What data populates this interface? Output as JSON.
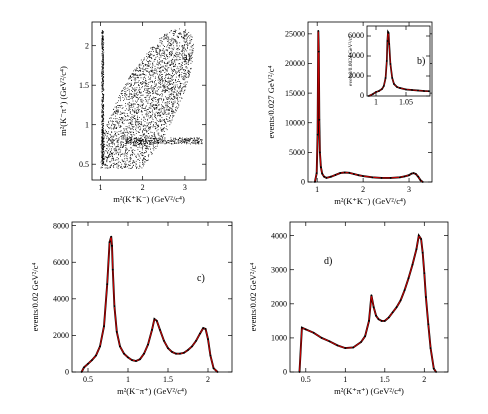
{
  "chart_data": [
    {
      "panel": "a)",
      "type": "scatter",
      "xlabel": "m²(K⁺K⁻) (GeV²/c⁴)",
      "ylabel": "m²(K⁻π⁺) (GeV²/c⁴)",
      "xlim": [
        0.8,
        3.5
      ],
      "ylim": [
        0.3,
        2.3
      ],
      "xticks": [
        1,
        2,
        3
      ],
      "yticks": [
        0.5,
        1,
        1.5,
        2
      ],
      "description_points": "dalitz_density",
      "color": "#000000"
    },
    {
      "panel": "b)",
      "type": "line",
      "xlabel": "m²(K⁺K⁻) (GeV²/c⁴)",
      "ylabel": "events/0.027 GeV²/c⁴",
      "xlim": [
        0.8,
        3.5
      ],
      "ylim": [
        0,
        27000
      ],
      "xticks": [
        1,
        2,
        3
      ],
      "yticks": [
        0,
        5000,
        10000,
        15000,
        20000,
        25000
      ],
      "x": [
        0.95,
        0.99,
        1.01,
        1.025,
        1.035,
        1.045,
        1.06,
        1.08,
        1.11,
        1.15,
        1.2,
        1.3,
        1.4,
        1.5,
        1.6,
        1.7,
        1.8,
        1.9,
        2.0,
        2.2,
        2.4,
        2.6,
        2.8,
        2.9,
        3.0,
        3.05,
        3.1,
        3.15,
        3.2,
        3.25,
        3.3
      ],
      "y": [
        0,
        1500,
        8000,
        25500,
        22000,
        10500,
        5000,
        2500,
        1400,
        900,
        700,
        900,
        1200,
        1500,
        1600,
        1550,
        1350,
        1150,
        1000,
        800,
        700,
        700,
        800,
        950,
        1150,
        1400,
        1500,
        1350,
        900,
        300,
        0
      ],
      "inset": {
        "xlabel": "",
        "ylabel": "events/0.0024 GeV²/c⁴",
        "xlim": [
          0.985,
          1.09
        ],
        "ylim": [
          0,
          7000
        ],
        "xticks": [
          1,
          1.05
        ],
        "yticks": [
          0,
          2000,
          4000,
          6000
        ],
        "x": [
          0.988,
          0.995,
          1.0,
          1.005,
          1.01,
          1.013,
          1.016,
          1.018,
          1.019,
          1.02,
          1.021,
          1.022,
          1.024,
          1.027,
          1.03,
          1.035,
          1.04,
          1.05,
          1.06,
          1.07,
          1.08,
          1.088
        ],
        "y": [
          0,
          200,
          400,
          500,
          700,
          1000,
          1800,
          3500,
          5500,
          6400,
          6300,
          5200,
          3200,
          1800,
          1200,
          900,
          800,
          650,
          600,
          550,
          500,
          480
        ]
      }
    },
    {
      "panel": "c)",
      "type": "line",
      "xlabel": "m²(K⁻π⁺) (GeV²/c⁴)",
      "ylabel": "events/0.02 GeV²/c⁴",
      "xlim": [
        0.3,
        2.3
      ],
      "ylim": [
        0,
        8200
      ],
      "xticks": [
        0.5,
        1,
        1.5,
        2
      ],
      "yticks": [
        0,
        2000,
        4000,
        6000,
        8000
      ],
      "x": [
        0.42,
        0.45,
        0.5,
        0.55,
        0.6,
        0.65,
        0.7,
        0.74,
        0.77,
        0.79,
        0.8,
        0.81,
        0.83,
        0.86,
        0.9,
        0.95,
        1.0,
        1.05,
        1.1,
        1.15,
        1.2,
        1.25,
        1.3,
        1.33,
        1.36,
        1.4,
        1.45,
        1.5,
        1.55,
        1.6,
        1.65,
        1.7,
        1.75,
        1.8,
        1.85,
        1.9,
        1.94,
        1.97,
        2.0,
        2.03,
        2.07,
        2.12
      ],
      "y": [
        0,
        250,
        450,
        650,
        900,
        1400,
        2500,
        4800,
        7100,
        7400,
        6900,
        5600,
        3600,
        2200,
        1400,
        1000,
        800,
        650,
        600,
        700,
        1000,
        1500,
        2300,
        2900,
        2800,
        2300,
        1700,
        1300,
        1100,
        1000,
        1000,
        1050,
        1200,
        1400,
        1700,
        2100,
        2400,
        2350,
        1800,
        900,
        200,
        0
      ]
    },
    {
      "panel": "d)",
      "type": "line",
      "xlabel": "m²(K⁺π⁺) (GeV²/c⁴)",
      "ylabel": "events/0.02 GeV²/c⁴",
      "xlim": [
        0.3,
        2.3
      ],
      "ylim": [
        0,
        4400
      ],
      "xticks": [
        0.5,
        1,
        1.5,
        2
      ],
      "yticks": [
        0,
        1000,
        2000,
        3000,
        4000
      ],
      "x": [
        0.42,
        0.45,
        0.5,
        0.6,
        0.7,
        0.8,
        0.9,
        1.0,
        1.1,
        1.2,
        1.25,
        1.3,
        1.33,
        1.36,
        1.39,
        1.42,
        1.46,
        1.5,
        1.55,
        1.6,
        1.65,
        1.7,
        1.75,
        1.8,
        1.85,
        1.9,
        1.93,
        1.96,
        1.98,
        2.0,
        2.02,
        2.05,
        2.08,
        2.12,
        2.15
      ],
      "y": [
        0,
        1300,
        1250,
        1150,
        1000,
        900,
        780,
        700,
        720,
        880,
        1050,
        1500,
        2250,
        1900,
        1650,
        1550,
        1500,
        1500,
        1600,
        1750,
        1900,
        2100,
        2400,
        2750,
        3150,
        3600,
        4000,
        3900,
        3500,
        2900,
        2200,
        1400,
        700,
        100,
        0
      ]
    }
  ]
}
